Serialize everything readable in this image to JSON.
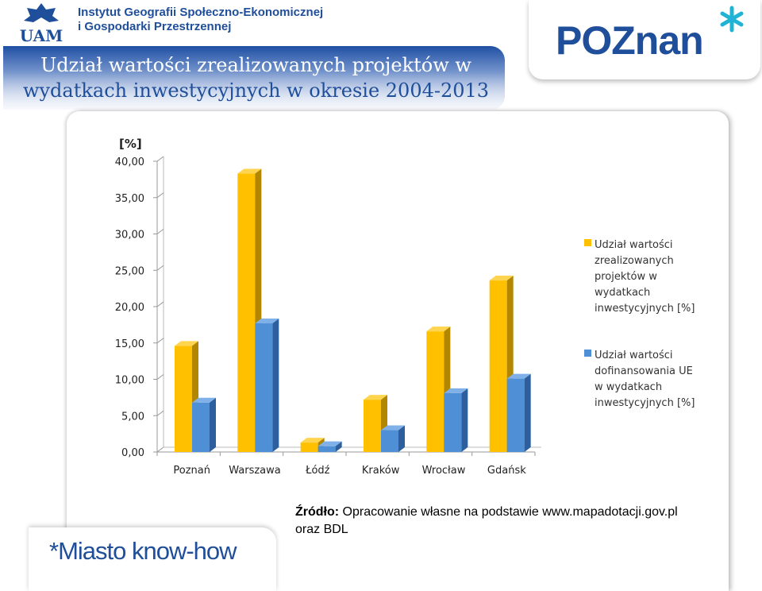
{
  "header": {
    "institute_line1": "Instytut Geografii Społeczno-Ekonomicznej",
    "institute_line2": "i Gospodarki Przestrzennej",
    "uam_logo_text": "UAM",
    "title_line1": "Udział wartości zrealizowanych projektów w",
    "title_line2": "wydatkach inwestycyjnych w okresie 2004-2013",
    "poznan_logo_text": "POZnan"
  },
  "footer": {
    "source_label": "Źródło:",
    "source_text": " Opracowanie własne na podstawie www.mapadotacji.gov.pl",
    "source_line2": "oraz BDL",
    "brand_text": "*Miasto know-how"
  },
  "colors": {
    "series1": "#ffc000",
    "series1_side": "#b38600",
    "series1_top": "#ffd54f",
    "series2": "#4f8fd6",
    "series2_side": "#2d5f9e",
    "series2_top": "#7fb0e8",
    "brand_blue": "#1f4e9a"
  },
  "chart_data": {
    "type": "bar",
    "ylabel": "[%]",
    "ylim": [
      0,
      40
    ],
    "ytick_labels": [
      "0,00",
      "5,00",
      "10,00",
      "15,00",
      "20,00",
      "25,00",
      "30,00",
      "35,00",
      "40,00"
    ],
    "categories": [
      "Poznań",
      "Warszawa",
      "Łódź",
      "Kraków",
      "Wrocław",
      "Gdańsk"
    ],
    "series": [
      {
        "name": "Udział wartości zrealizowanych projektów w wydatkach inwestycyjnych [%]",
        "legend_lines": [
          "Udział wartości",
          "zrealizowanych",
          "projektów w",
          "wydatkach",
          "inwestycyjnych [%]"
        ],
        "values": [
          14.6,
          38.3,
          1.3,
          7.2,
          16.6,
          23.6
        ]
      },
      {
        "name": "Udział wartości dofinansowania UE w wydatkach inwestycyjnych [%]",
        "legend_lines": [
          "Udział wartości",
          "dofinansowania UE",
          "w wydatkach",
          "inwestycyjnych [%]"
        ],
        "values": [
          6.8,
          17.7,
          0.8,
          3.0,
          8.1,
          10.1
        ]
      }
    ],
    "grid": false,
    "legend_position": "right"
  }
}
